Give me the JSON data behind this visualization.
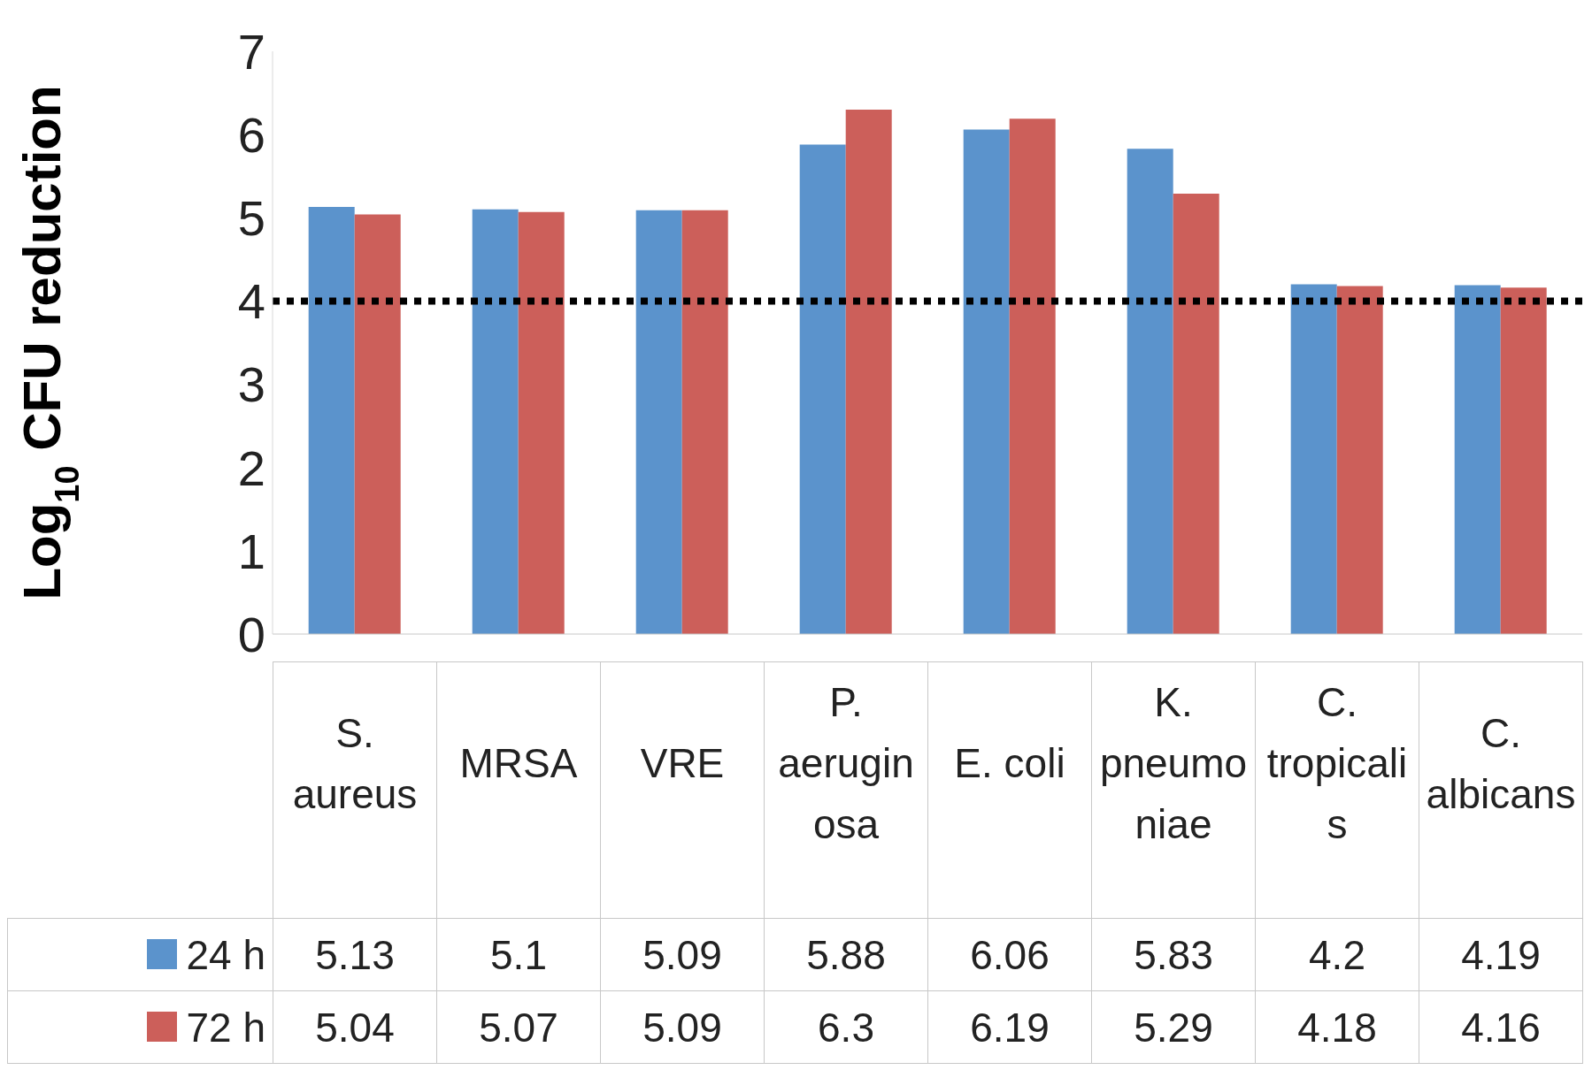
{
  "chart_data": {
    "type": "bar",
    "ylabel": "Log$_{10}$ CFU reduction",
    "categories": [
      "S. aureus",
      "MRSA",
      "VRE",
      "P. aeruginosa",
      "E. coli",
      "K. pneumoniae",
      "C. tropicalis",
      "C. albicans"
    ],
    "series": [
      {
        "name": "24 h",
        "color": "#5b93cc",
        "values": [
          5.13,
          5.1,
          5.09,
          5.88,
          6.06,
          5.83,
          4.2,
          4.19
        ]
      },
      {
        "name": "72 h",
        "color": "#cc5f5a",
        "values": [
          5.04,
          5.07,
          5.09,
          6.3,
          6.19,
          5.29,
          4.18,
          4.16
        ]
      }
    ],
    "ylim": [
      0,
      7
    ],
    "yticks": [
      0,
      1,
      2,
      3,
      4,
      5,
      6,
      7
    ],
    "ref_lines": [
      {
        "axis": "y",
        "value": 4,
        "color": "#000000",
        "line_style": "dotted"
      }
    ],
    "data_labels": true,
    "legend": "bottom left",
    "grid": false
  }
}
